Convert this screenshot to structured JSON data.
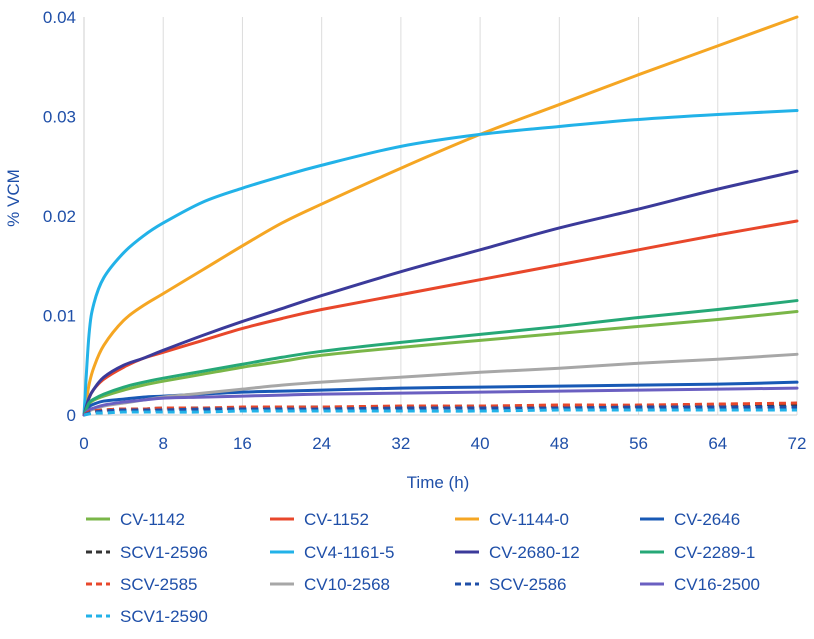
{
  "chart_data": {
    "type": "line",
    "title": "",
    "xlabel": "Time (h)",
    "ylabel": "% VCM",
    "xlim": [
      0,
      72
    ],
    "ylim": [
      0,
      0.04
    ],
    "x_ticks": [
      "0",
      "8",
      "16",
      "24",
      "32",
      "40",
      "48",
      "56",
      "64",
      "72"
    ],
    "y_ticks": [
      "0",
      "0.01",
      "0.02",
      "0.03",
      "0.04"
    ],
    "grid": "vertical",
    "legend_position": "bottom",
    "x": [
      0,
      0.5,
      1,
      2,
      4,
      6,
      8,
      12,
      16,
      20,
      24,
      32,
      40,
      48,
      56,
      64,
      72
    ],
    "series": [
      {
        "name": "CV-1142",
        "color": "#7ab648",
        "dash": "solid",
        "values": [
          0,
          0.0011,
          0.0015,
          0.0019,
          0.0025,
          0.003,
          0.0034,
          0.0041,
          0.0048,
          0.0054,
          0.006,
          0.0068,
          0.0075,
          0.0082,
          0.0089,
          0.0096,
          0.0104
        ]
      },
      {
        "name": "CV-1152",
        "color": "#e8472b",
        "dash": "solid",
        "values": [
          0,
          0.0017,
          0.0026,
          0.0036,
          0.0048,
          0.0057,
          0.0063,
          0.0075,
          0.0087,
          0.0097,
          0.0106,
          0.0121,
          0.0136,
          0.0151,
          0.0166,
          0.0181,
          0.0195
        ]
      },
      {
        "name": "CV-1144-0",
        "color": "#f5a623",
        "dash": "solid",
        "values": [
          0,
          0.003,
          0.0048,
          0.007,
          0.0095,
          0.011,
          0.0122,
          0.0146,
          0.017,
          0.0193,
          0.0212,
          0.0248,
          0.0282,
          0.0312,
          0.0342,
          0.0371,
          0.04
        ]
      },
      {
        "name": "CV-2646",
        "color": "#1859b5",
        "dash": "solid",
        "values": [
          0,
          0.0008,
          0.0011,
          0.0014,
          0.0016,
          0.0018,
          0.0019,
          0.0021,
          0.0023,
          0.0024,
          0.0025,
          0.0027,
          0.0028,
          0.0029,
          0.003,
          0.0031,
          0.0033
        ]
      },
      {
        "name": "SCV1-2596",
        "color": "#333333",
        "dash": "dashed",
        "values": [
          0,
          0.0003,
          0.0004,
          0.0005,
          0.0006,
          0.0006,
          0.0007,
          0.0007,
          0.0007,
          0.0008,
          0.0008,
          0.0008,
          0.0009,
          0.0009,
          0.0009,
          0.001,
          0.0011
        ]
      },
      {
        "name": "CV4-1161-5",
        "color": "#22b2e8",
        "dash": "solid",
        "values": [
          0,
          0.008,
          0.0112,
          0.0138,
          0.0163,
          0.018,
          0.0193,
          0.0214,
          0.0228,
          0.024,
          0.0251,
          0.027,
          0.0282,
          0.029,
          0.0297,
          0.0302,
          0.0306
        ]
      },
      {
        "name": "CV-2680-12",
        "color": "#3b3a9a",
        "dash": "solid",
        "values": [
          0,
          0.0017,
          0.0026,
          0.0038,
          0.005,
          0.0057,
          0.0065,
          0.008,
          0.0094,
          0.0107,
          0.012,
          0.0144,
          0.0166,
          0.0188,
          0.0207,
          0.0227,
          0.0245
        ]
      },
      {
        "name": "CV-2289-1",
        "color": "#26a877",
        "dash": "solid",
        "values": [
          0,
          0.0012,
          0.0016,
          0.0021,
          0.0028,
          0.0033,
          0.0037,
          0.0044,
          0.0051,
          0.0058,
          0.0064,
          0.0073,
          0.0081,
          0.0089,
          0.0098,
          0.0106,
          0.0115
        ]
      },
      {
        "name": "SCV-2585",
        "color": "#e8472b",
        "dash": "dashed",
        "values": [
          0,
          0.0003,
          0.0004,
          0.0005,
          0.0006,
          0.0006,
          0.0007,
          0.0007,
          0.0008,
          0.0008,
          0.0008,
          0.0009,
          0.0009,
          0.001,
          0.001,
          0.0011,
          0.0012
        ]
      },
      {
        "name": "CV10-2568",
        "color": "#a7a7a7",
        "dash": "solid",
        "values": [
          0,
          0.0004,
          0.0006,
          0.0009,
          0.0012,
          0.0015,
          0.0018,
          0.0022,
          0.0026,
          0.003,
          0.0033,
          0.0038,
          0.0043,
          0.0047,
          0.0052,
          0.0056,
          0.0061
        ]
      },
      {
        "name": "SCV-2586",
        "color": "#1f4fa8",
        "dash": "dashed",
        "values": [
          0,
          0.0002,
          0.0003,
          0.0004,
          0.0005,
          0.0005,
          0.0005,
          0.0006,
          0.0006,
          0.0006,
          0.0006,
          0.0007,
          0.0007,
          0.0007,
          0.0008,
          0.0008,
          0.0008
        ]
      },
      {
        "name": "CV16-2500",
        "color": "#6a5fc1",
        "dash": "solid",
        "values": [
          0,
          0.0005,
          0.0007,
          0.001,
          0.0013,
          0.0015,
          0.0017,
          0.0018,
          0.0019,
          0.002,
          0.0021,
          0.0022,
          0.0023,
          0.0024,
          0.0025,
          0.0026,
          0.0027
        ]
      },
      {
        "name": "SCV1-2590",
        "color": "#22b2e8",
        "dash": "dashed",
        "values": [
          0,
          0.0001,
          0.0002,
          0.0002,
          0.0003,
          0.0003,
          0.0003,
          0.0003,
          0.0004,
          0.0004,
          0.0004,
          0.0004,
          0.0004,
          0.0005,
          0.0005,
          0.0005,
          0.0005
        ]
      }
    ]
  }
}
